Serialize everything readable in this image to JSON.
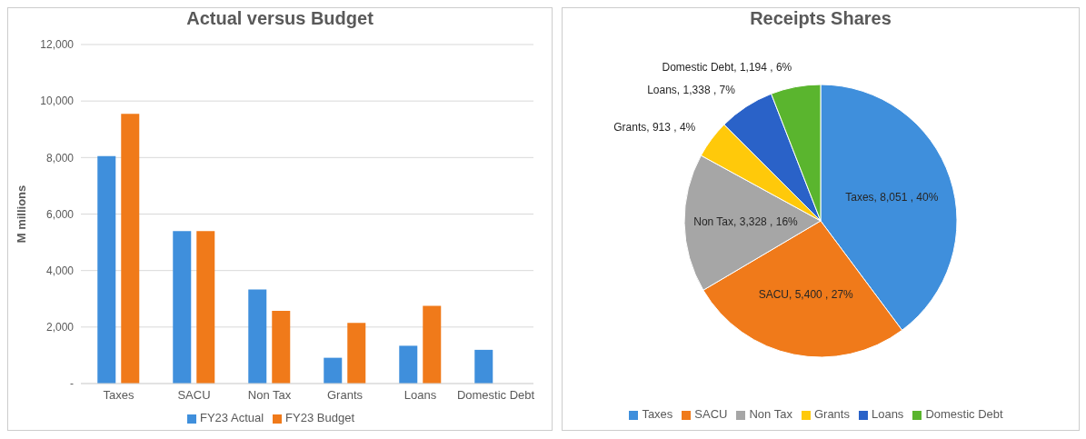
{
  "chart_data": [
    {
      "type": "bar",
      "title": "Actual versus Budget",
      "ylabel": "M millions",
      "categories": [
        "Taxes",
        "SACU",
        "Non Tax",
        "Grants",
        "Loans",
        "Domestic Debt"
      ],
      "series": [
        {
          "name": "FY23 Actual",
          "color": "#3f8fdc",
          "values": [
            8051,
            5400,
            3328,
            913,
            1338,
            1194
          ]
        },
        {
          "name": "FY23 Budget",
          "color": "#f07a1a",
          "values": [
            9550,
            5400,
            2570,
            2150,
            2750,
            null
          ]
        }
      ],
      "ylim": [
        0,
        12000
      ],
      "yticks": [
        {
          "value": 0,
          "label": "-"
        },
        {
          "value": 2000,
          "label": "2,000"
        },
        {
          "value": 4000,
          "label": "4,000"
        },
        {
          "value": 6000,
          "label": "6,000"
        },
        {
          "value": 8000,
          "label": "8,000"
        },
        {
          "value": 10000,
          "label": "10,000"
        },
        {
          "value": 12000,
          "label": "12,000"
        }
      ],
      "grid": "y",
      "legend": "bottom"
    },
    {
      "type": "pie",
      "title": "Receipts Shares",
      "categories": [
        "Taxes",
        "SACU",
        "Non Tax",
        "Grants",
        "Loans",
        "Domestic Debt"
      ],
      "values": [
        8051,
        5400,
        3328,
        913,
        1338,
        1194
      ],
      "colors": [
        "#3f8fdc",
        "#f07a1a",
        "#a6a6a6",
        "#ffc90a",
        "#2a62c8",
        "#5ab52e"
      ],
      "value_labels": [
        "Taxes, 8,051 , 40%",
        "SACU, 5,400 , 27%",
        "Non Tax, 3,328 , 16%",
        "Grants, 913 , 4%",
        "Loans, 1,338 , 7%",
        "Domestic Debt, 1,194 , 6%"
      ],
      "legend": "bottom"
    }
  ]
}
